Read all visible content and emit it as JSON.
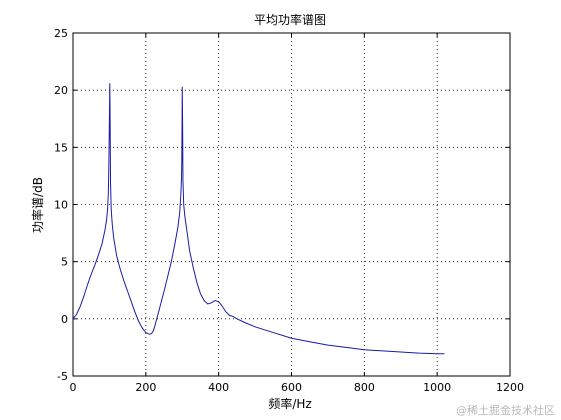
{
  "chart_data": {
    "type": "line",
    "title": "平均功率谱图",
    "xlabel": "频率/Hz",
    "ylabel": "功率谱/dB",
    "xlim": [
      0,
      1200
    ],
    "ylim": [
      -5,
      25
    ],
    "xticks": [
      0,
      200,
      400,
      600,
      800,
      1000,
      1200
    ],
    "yticks": [
      -5,
      0,
      5,
      10,
      15,
      20,
      25
    ],
    "grid": true,
    "line_color": "#1a1aa8",
    "series": [
      {
        "x": [
          0,
          10,
          20,
          30,
          40,
          50,
          60,
          70,
          80,
          88,
          92,
          95,
          97,
          98,
          99,
          100,
          101,
          102,
          103,
          105,
          108,
          112,
          120,
          130,
          140,
          150,
          160,
          170,
          180,
          190,
          200,
          210,
          215,
          220,
          225,
          230,
          240,
          250,
          260,
          270,
          280,
          288,
          293,
          296,
          298,
          299,
          300,
          301,
          302,
          304,
          307,
          310,
          315,
          320,
          330,
          340,
          350,
          360,
          370,
          380,
          390,
          400,
          410,
          420,
          430,
          440,
          450,
          470,
          500,
          550,
          600,
          650,
          700,
          750,
          800,
          850,
          900,
          950,
          1000,
          1020
        ],
        "y": [
          0,
          0.4,
          1.1,
          2.0,
          3.0,
          3.9,
          4.7,
          5.6,
          6.6,
          7.8,
          8.6,
          9.6,
          11.0,
          12.5,
          15.0,
          17.5,
          20.6,
          17.0,
          12.0,
          9.5,
          8.2,
          7.0,
          5.5,
          4.3,
          3.3,
          2.4,
          1.5,
          0.6,
          -0.2,
          -0.8,
          -1.2,
          -1.35,
          -1.3,
          -1.1,
          -0.6,
          0,
          1.2,
          2.4,
          3.7,
          5.0,
          6.6,
          8.0,
          9.3,
          10.8,
          12.3,
          14.5,
          20.3,
          17.0,
          12.0,
          10.0,
          9.0,
          8.3,
          7.2,
          6.0,
          4.5,
          3.2,
          2.2,
          1.6,
          1.3,
          1.4,
          1.6,
          1.5,
          1.1,
          0.6,
          0.3,
          0.2,
          0.0,
          -0.3,
          -0.7,
          -1.2,
          -1.7,
          -2.0,
          -2.3,
          -2.5,
          -2.7,
          -2.8,
          -2.9,
          -3.0,
          -3.05,
          -3.05
        ]
      }
    ]
  },
  "watermark": "@稀土掘金技术社区"
}
